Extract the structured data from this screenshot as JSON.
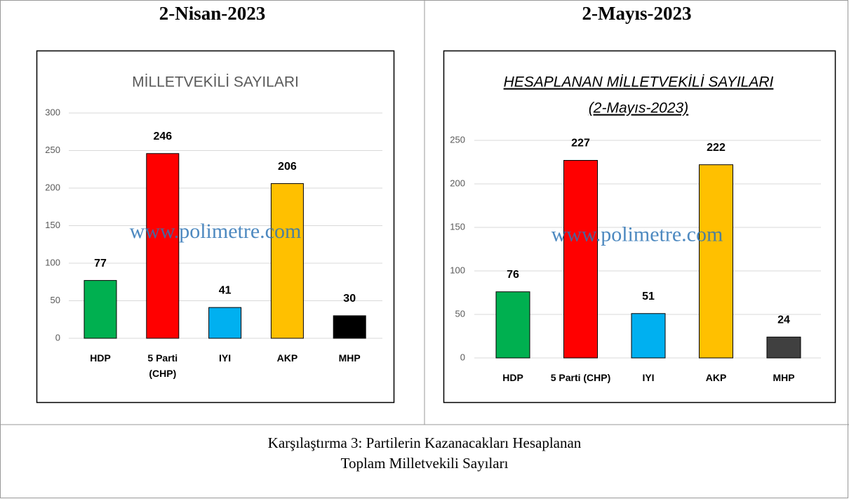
{
  "table": {
    "headers": [
      "2-Nisan-2023",
      "2-Mayıs-2023"
    ],
    "caption": [
      "Karşılaştırma 3: Partilerin Kazanacakları Hesaplanan",
      "Toplam Milletvekili Sayıları"
    ]
  },
  "chart_data": [
    {
      "type": "bar",
      "title": "MİLLETVEKİLİ SAYILARI",
      "annotation": "www.polimetre.com",
      "categories": [
        "HDP",
        "5 Parti (CHP)",
        "IYI",
        "AKP",
        "MHP"
      ],
      "values": [
        77,
        246,
        41,
        206,
        30
      ],
      "colors": [
        "#00b050",
        "#ff0000",
        "#00b0f0",
        "#ffc000",
        "#000000"
      ],
      "ylim": [
        0,
        300
      ],
      "yticks": [
        0,
        50,
        100,
        150,
        200,
        250,
        300
      ],
      "grid": true
    },
    {
      "type": "bar",
      "title": "HESAPLANAN MİLLETVEKİLİ SAYILARI",
      "subtitle": "(2-Mayıs-2023)",
      "annotation": "www.polimetre.com",
      "categories": [
        "HDP",
        "5 Parti (CHP)",
        "IYI",
        "AKP",
        "MHP"
      ],
      "values": [
        76,
        227,
        51,
        222,
        24
      ],
      "colors": [
        "#00b050",
        "#ff0000",
        "#00b0f0",
        "#ffc000",
        "#404040"
      ],
      "ylim": [
        0,
        250
      ],
      "yticks": [
        0,
        50,
        100,
        150,
        200,
        250
      ],
      "grid": true
    }
  ]
}
